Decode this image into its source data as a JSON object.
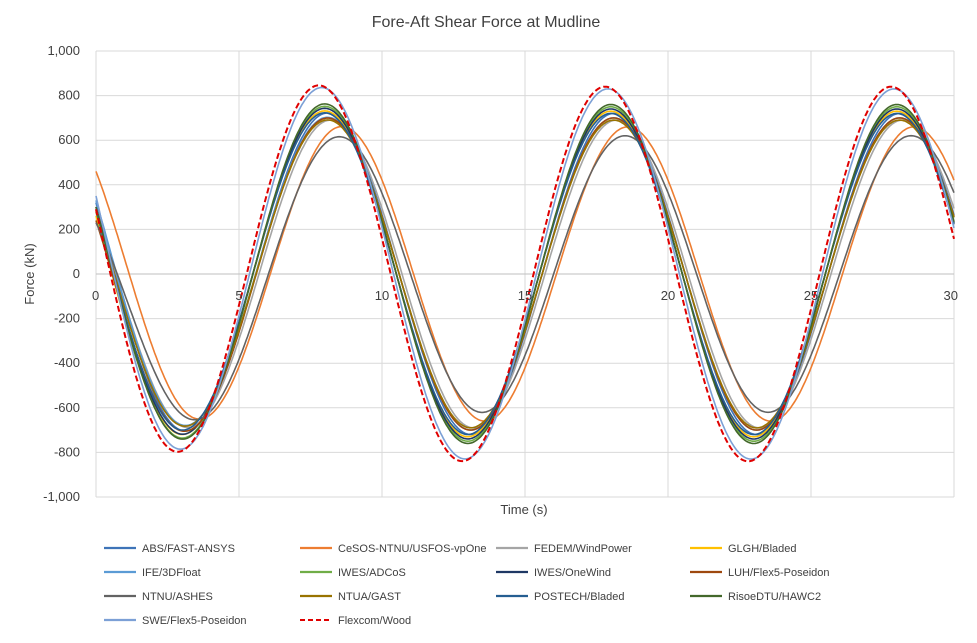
{
  "chart_data": {
    "type": "line",
    "title": "Fore-Aft Shear Force at Mudline",
    "xlabel": "Time (s)",
    "ylabel": "Force (kN)",
    "xlim": [
      0,
      30
    ],
    "ylim": [
      -1000,
      1000
    ],
    "x_ticks": [
      0,
      5,
      10,
      15,
      20,
      25,
      30
    ],
    "y_ticks": [
      -1000,
      -800,
      -600,
      -400,
      -200,
      0,
      200,
      400,
      600,
      800,
      1000
    ],
    "y_tick_labels": [
      "-1,000",
      "-800",
      "-600",
      "-400",
      "-200",
      "0",
      "200",
      "400",
      "600",
      "800",
      "1,000"
    ],
    "grid": true,
    "legend_position": "bottom",
    "period_s": 10,
    "series": [
      {
        "name": "ABS/FAST-ANSYS",
        "color": "#3e74b8",
        "dash": "none",
        "amplitude_kN": 720,
        "value_at_t0_kN": 320,
        "peak_time_s": 8.1
      },
      {
        "name": "CeSOS-NTNU/USFOS-vpOne",
        "color": "#ed7d31",
        "dash": "none",
        "amplitude_kN": 660,
        "value_at_t0_kN": 460,
        "peak_time_s": 8.6
      },
      {
        "name": "FEDEM/WindPower",
        "color": "#a5a5a5",
        "dash": "none",
        "amplitude_kN": 690,
        "value_at_t0_kN": 300,
        "peak_time_s": 8.2
      },
      {
        "name": "GLGH/Bladed",
        "color": "#ffc000",
        "dash": "none",
        "amplitude_kN": 730,
        "value_at_t0_kN": 260,
        "peak_time_s": 8.0
      },
      {
        "name": "IFE/3DFloat",
        "color": "#5b9bd5",
        "dash": "none",
        "amplitude_kN": 700,
        "value_at_t0_kN": 330,
        "peak_time_s": 8.1
      },
      {
        "name": "IWES/ADCoS",
        "color": "#70ad47",
        "dash": "none",
        "amplitude_kN": 750,
        "value_at_t0_kN": 280,
        "peak_time_s": 8.0
      },
      {
        "name": "IWES/OneWind",
        "color": "#1f3864",
        "dash": "none",
        "amplitude_kN": 740,
        "value_at_t0_kN": 300,
        "peak_time_s": 8.0
      },
      {
        "name": "LUH/Flex5-Poseidon",
        "color": "#9e480e",
        "dash": "none",
        "amplitude_kN": 700,
        "value_at_t0_kN": 240,
        "peak_time_s": 8.1
      },
      {
        "name": "NTNU/ASHES",
        "color": "#636363",
        "dash": "none",
        "amplitude_kN": 620,
        "value_at_t0_kN": 230,
        "peak_time_s": 8.5
      },
      {
        "name": "NTUA/GAST",
        "color": "#997300",
        "dash": "none",
        "amplitude_kN": 690,
        "value_at_t0_kN": 280,
        "peak_time_s": 8.1
      },
      {
        "name": "POSTECH/Bladed",
        "color": "#255e91",
        "dash": "none",
        "amplitude_kN": 720,
        "value_at_t0_kN": 290,
        "peak_time_s": 8.0
      },
      {
        "name": "RisoeDTU/HAWC2",
        "color": "#43682b",
        "dash": "none",
        "amplitude_kN": 760,
        "value_at_t0_kN": 300,
        "peak_time_s": 8.0
      },
      {
        "name": "SWE/Flex5-Poseidon",
        "color": "#7ca0d6",
        "dash": "none",
        "amplitude_kN": 830,
        "value_at_t0_kN": 350,
        "peak_time_s": 7.9
      },
      {
        "name": "Flexcom/Wood",
        "color": "#e00000",
        "dash": "dashed",
        "amplitude_kN": 840,
        "value_at_t0_kN": 290,
        "peak_time_s": 7.8
      }
    ]
  }
}
